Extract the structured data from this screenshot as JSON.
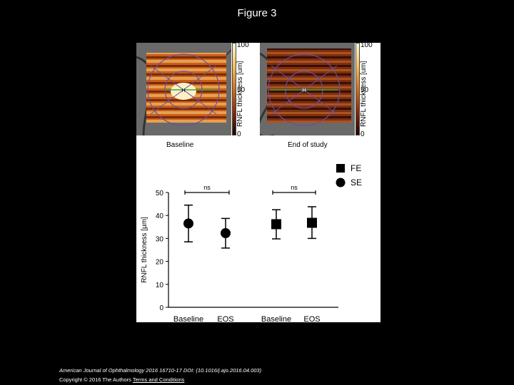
{
  "slide": {
    "title": "Figure 3",
    "citation": "American Journal of Ophthalmology 2016 16710-17 DOI: (10.1016/j.ajo.2016.04.003)",
    "copyright": "Copyright © 2016 The Authors",
    "terms_link": "Terms and Conditions"
  },
  "maps": {
    "colorbar_title": "RNFL thickness [um]",
    "colorbar_ticks": [
      "100",
      "50",
      "0"
    ],
    "panels": [
      {
        "caption": "Baseline",
        "marker": "H"
      },
      {
        "caption": "End of study",
        "marker": "H"
      }
    ]
  },
  "colors": {
    "background": "#000000",
    "panel": "#ffffff",
    "marks": "#000000",
    "map_warm": "#d4701c",
    "map_dark": "#3a0e06"
  },
  "chart_data": {
    "type": "scatter",
    "categories": [
      "Baseline",
      "EOS",
      "Baseline",
      "EOS"
    ],
    "ylabel": "RNFL thickness [µm]",
    "xlabel": "",
    "ylim": [
      0,
      50
    ],
    "yticks": [
      0,
      10,
      20,
      30,
      40,
      50
    ],
    "grid": false,
    "legend_position": "top-right",
    "series": [
      {
        "name": "SE",
        "marker": "circle",
        "points": [
          {
            "category": "Baseline",
            "mean": 36.5,
            "err_low": 28.5,
            "err_high": 44.5
          },
          {
            "category": "EOS",
            "mean": 32.3,
            "err_low": 25.8,
            "err_high": 38.7
          }
        ]
      },
      {
        "name": "FE",
        "marker": "square",
        "points": [
          {
            "category": "Baseline",
            "mean": 36.2,
            "err_low": 29.8,
            "err_high": 42.5
          },
          {
            "category": "EOS",
            "mean": 36.8,
            "err_low": 30.0,
            "err_high": 43.8
          }
        ]
      }
    ],
    "annotations": [
      {
        "text": "ns",
        "between": [
          "Baseline",
          "EOS"
        ],
        "series": "SE"
      },
      {
        "text": "ns",
        "between": [
          "Baseline",
          "EOS"
        ],
        "series": "FE"
      }
    ]
  }
}
